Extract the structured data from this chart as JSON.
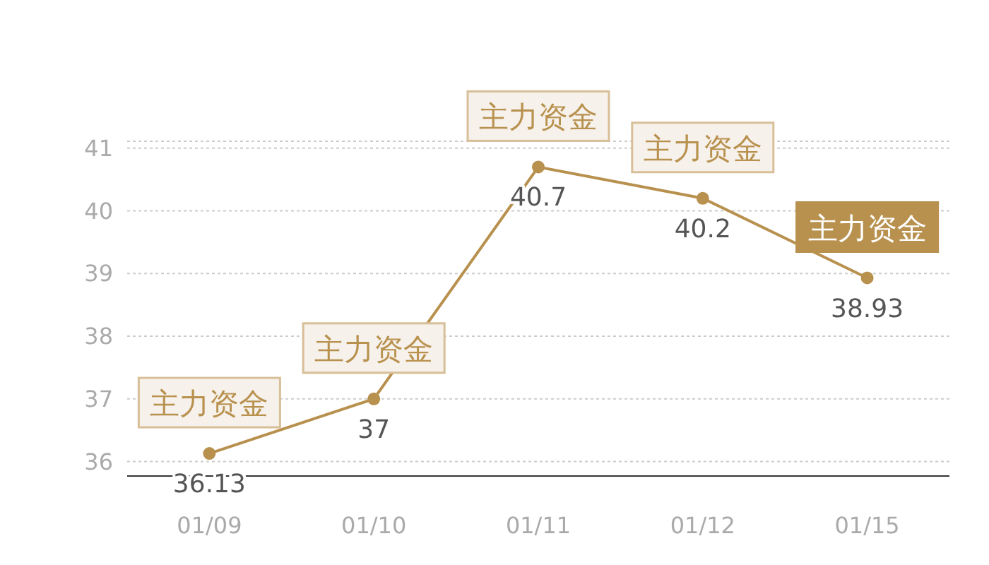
{
  "chart_data": {
    "type": "line",
    "categories": [
      "01/09",
      "01/10",
      "01/11",
      "01/12",
      "01/15"
    ],
    "series": [
      {
        "color": "#b8914f",
        "values": [
          36.13,
          37,
          40.7,
          40.2,
          38.93
        ]
      }
    ],
    "ylim": [
      35.77,
      41.11
    ],
    "yticks": [
      36,
      37,
      38,
      39,
      40,
      41
    ],
    "grid": "y",
    "marker": "circle",
    "line_style": "solid",
    "data_labels": true,
    "annotations": [
      {
        "text": "主力资金",
        "x": "01/09",
        "y": 36.13
      },
      {
        "text": "主力资金",
        "x": "01/10",
        "y": 37
      },
      {
        "text": "主力资金",
        "x": "01/11",
        "y": 40.7
      },
      {
        "text": "主力资金",
        "x": "01/12",
        "y": 40.2
      },
      {
        "text": "主力资金",
        "x": "01/15",
        "y": 38.93
      }
    ]
  }
}
